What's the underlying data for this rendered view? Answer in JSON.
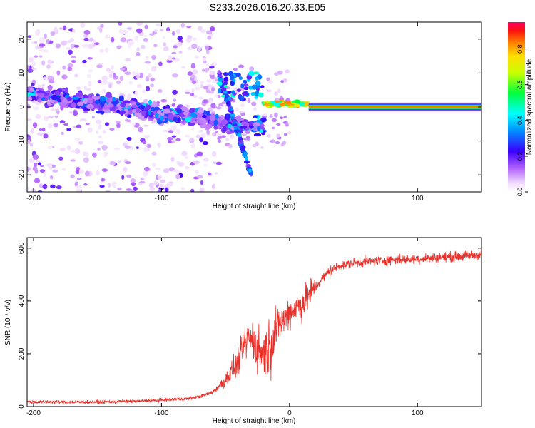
{
  "title": "S233.2026.016.20.33.E05",
  "chart_data": [
    {
      "type": "heatmap",
      "xlabel": "Height of straight line (km)",
      "ylabel": "Frequency (Hz)",
      "xlim": [
        -205,
        150
      ],
      "ylim": [
        -25,
        25
      ],
      "xticks": [
        -200,
        -100,
        0,
        100
      ],
      "yticks": [
        -20,
        -10,
        0,
        10,
        20
      ],
      "colorbar": {
        "label": "Normalized spectral amplitude",
        "range": [
          0,
          0.95
        ],
        "ticks": [
          0.0,
          0.2,
          0.4,
          0.6,
          0.8
        ]
      },
      "features": [
        {
          "x_range": [
            -205,
            -60
          ],
          "description": "scattered low-amplitude noise"
        },
        {
          "x_range": [
            -205,
            -20
          ],
          "freq_trend": [
            4,
            -8
          ],
          "description": "dispersed band"
        },
        {
          "x_range": [
            -55,
            -30
          ],
          "freq_trend": [
            10,
            -20
          ],
          "description": "chirp feature"
        },
        {
          "x_range": [
            -20,
            15
          ],
          "freq_hz": 1.5,
          "description": "onset of narrow tone"
        },
        {
          "x_range": [
            15,
            150
          ],
          "freq_hz": 0,
          "description": "steady narrow tone, high amplitude"
        }
      ]
    },
    {
      "type": "line",
      "xlabel": "Height of straight line (km)",
      "ylabel": "SNR (10 * v/v)",
      "xlim": [
        -205,
        150
      ],
      "ylim": [
        0,
        640
      ],
      "xticks": [
        -200,
        -100,
        0,
        100
      ],
      "yticks": [
        0,
        200,
        400,
        600
      ],
      "series": [
        {
          "name": "SNR",
          "color": "#e8302a",
          "x": [
            -205,
            -180,
            -160,
            -140,
            -120,
            -100,
            -80,
            -70,
            -60,
            -50,
            -40,
            -35,
            -30,
            -25,
            -20,
            -15,
            -10,
            -5,
            0,
            10,
            20,
            30,
            40,
            60,
            80,
            100,
            120,
            150
          ],
          "y": [
            18,
            17,
            17,
            18,
            20,
            24,
            30,
            38,
            55,
            100,
            170,
            240,
            260,
            220,
            200,
            230,
            300,
            330,
            360,
            390,
            450,
            510,
            535,
            550,
            555,
            560,
            565,
            575
          ]
        }
      ]
    }
  ]
}
